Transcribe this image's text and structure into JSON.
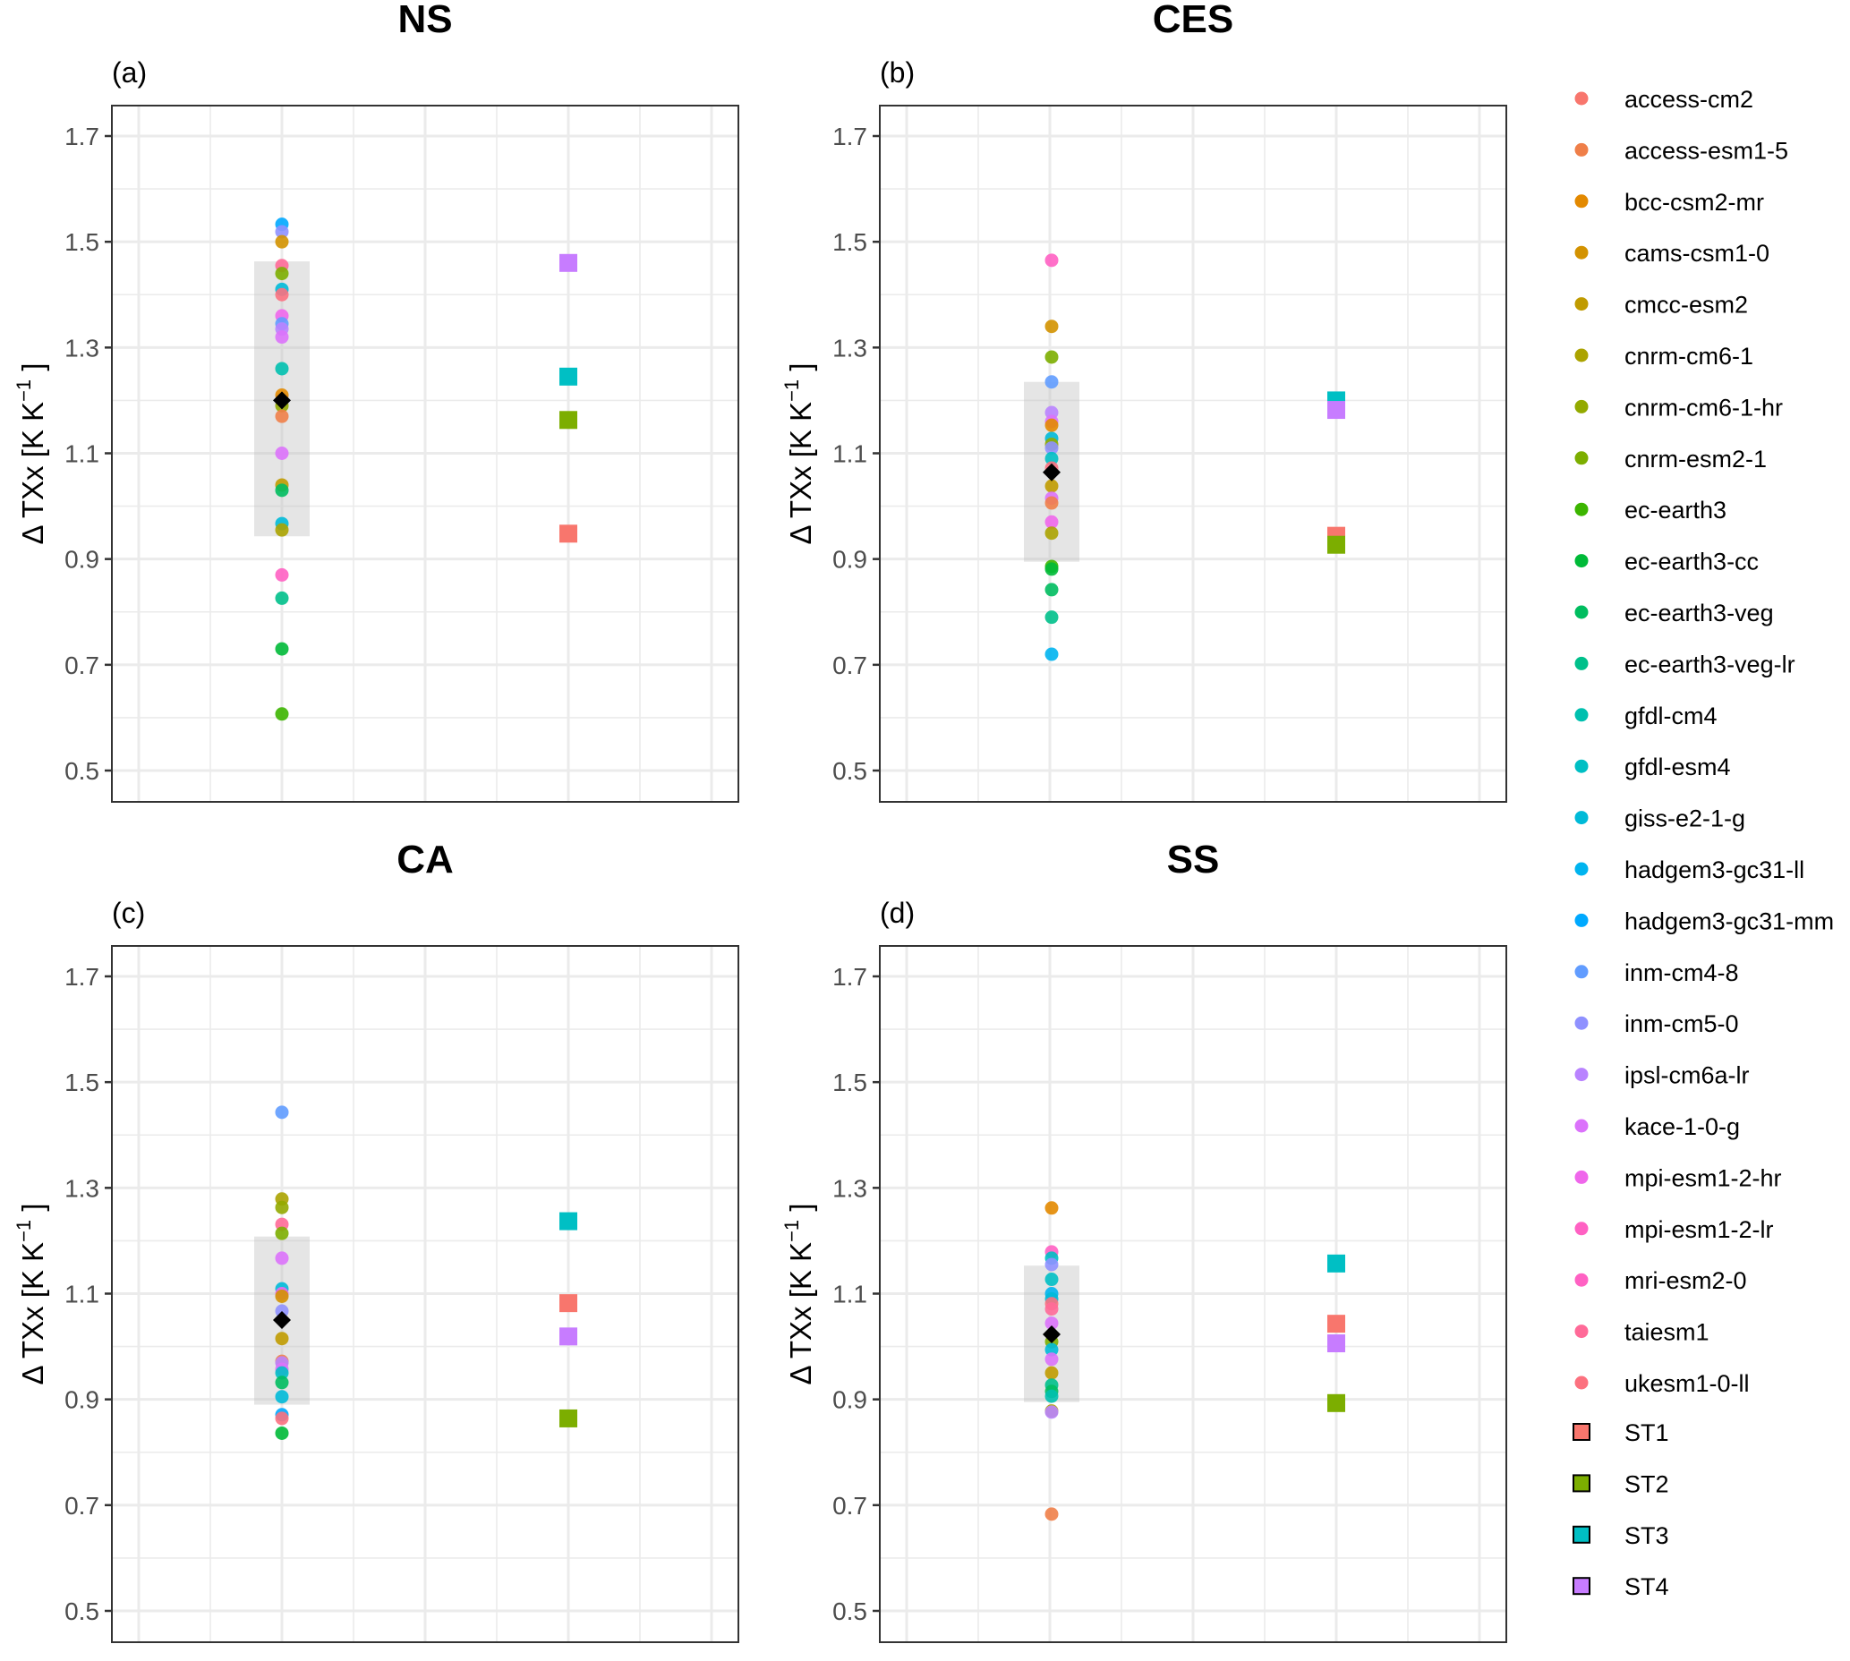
{
  "chart_data": {
    "type": "scatter",
    "ylabel": "Δ TXx [K K⁻¹]",
    "ylabel_parts": {
      "main": "Δ TXx [K K",
      "sup": "−1",
      "close": " ]"
    },
    "yticks": [
      "0.5",
      "0.7",
      "0.9",
      "1.1",
      "1.3",
      "1.5",
      "1.7"
    ],
    "ytick_values": [
      0.5,
      0.7,
      0.9,
      1.1,
      1.3,
      1.5,
      1.7
    ],
    "ylim": [
      0.44,
      1.76
    ],
    "grid": true,
    "legend_position": "right",
    "models": [
      {
        "name": "access-cm2",
        "color": "#F8766D"
      },
      {
        "name": "access-esm1-5",
        "color": "#EF7F49"
      },
      {
        "name": "bcc-csm2-mr",
        "color": "#E38900"
      },
      {
        "name": "cams-csm1-0",
        "color": "#D39200"
      },
      {
        "name": "cmcc-esm2",
        "color": "#C09B00"
      },
      {
        "name": "cnrm-cm6-1",
        "color": "#ABA300"
      },
      {
        "name": "cnrm-cm6-1-hr",
        "color": "#93AA00"
      },
      {
        "name": "cnrm-esm2-1",
        "color": "#7CAE00"
      },
      {
        "name": "ec-earth3",
        "color": "#3CB500"
      },
      {
        "name": "ec-earth3-cc",
        "color": "#00BA38"
      },
      {
        "name": "ec-earth3-veg",
        "color": "#00BD5F"
      },
      {
        "name": "ec-earth3-veg-lr",
        "color": "#00C08B"
      },
      {
        "name": "gfdl-cm4",
        "color": "#00C0AF"
      },
      {
        "name": "gfdl-esm4",
        "color": "#00BFC4"
      },
      {
        "name": "giss-e2-1-g",
        "color": "#00BAD8"
      },
      {
        "name": "hadgem3-gc31-ll",
        "color": "#00B4EF"
      },
      {
        "name": "hadgem3-gc31-mm",
        "color": "#00A9FF"
      },
      {
        "name": "inm-cm4-8",
        "color": "#619CFF"
      },
      {
        "name": "inm-cm5-0",
        "color": "#8F91FF"
      },
      {
        "name": "ipsl-cm6a-lr",
        "color": "#B983FF"
      },
      {
        "name": "kace-1-0-g",
        "color": "#DB72FB"
      },
      {
        "name": "mpi-esm1-2-hr",
        "color": "#EF67EB"
      },
      {
        "name": "mpi-esm1-2-lr",
        "color": "#FF61C3"
      },
      {
        "name": "mri-esm2-0",
        "color": "#FF61C3"
      },
      {
        "name": "taiesm1",
        "color": "#FF6A98"
      },
      {
        "name": "ukesm1-0-ll",
        "color": "#FC717F"
      }
    ],
    "storylines": [
      {
        "name": "ST1",
        "color": "#F8766D"
      },
      {
        "name": "ST2",
        "color": "#7CAE00"
      },
      {
        "name": "ST3",
        "color": "#00BFC4"
      },
      {
        "name": "ST4",
        "color": "#C77CFF"
      }
    ],
    "panels": [
      {
        "title": "NS",
        "tag": "(a)",
        "shade_range": [
          0.943,
          1.463
        ],
        "ensemble_mean": 1.2,
        "points": [
          {
            "model": "hadgem3-gc31-mm",
            "value": 1.533
          },
          {
            "model": "inm-cm5-0",
            "value": 1.519
          },
          {
            "model": "cams-csm1-0",
            "value": 1.5
          },
          {
            "model": "taiesm1",
            "value": 1.455
          },
          {
            "model": "cnrm-esm2-1",
            "value": 1.44
          },
          {
            "model": "giss-e2-1-g",
            "value": 1.41
          },
          {
            "model": "ukesm1-0-ll",
            "value": 1.4
          },
          {
            "model": "mpi-esm1-2-hr",
            "value": 1.36
          },
          {
            "model": "inm-cm4-8",
            "value": 1.345
          },
          {
            "model": "ipsl-cm6a-lr",
            "value": 1.335
          },
          {
            "model": "kace-1-0-g",
            "value": 1.32
          },
          {
            "model": "gfdl-cm4",
            "value": 1.26
          },
          {
            "model": "bcc-csm2-mr",
            "value": 1.21
          },
          {
            "model": "cnrm-cm6-1-hr",
            "value": 1.19
          },
          {
            "model": "access-esm1-5",
            "value": 1.17
          },
          {
            "model": "kace-1-0-g",
            "value": 1.1
          },
          {
            "model": "cmcc-esm2",
            "value": 1.04
          },
          {
            "model": "ec-earth3-veg",
            "value": 1.03
          },
          {
            "model": "giss-e2-1-g",
            "value": 0.967
          },
          {
            "model": "cnrm-cm6-1",
            "value": 0.955
          },
          {
            "model": "mpi-esm1-2-lr",
            "value": 0.87
          },
          {
            "model": "ec-earth3-veg-lr",
            "value": 0.826
          },
          {
            "model": "ec-earth3-cc",
            "value": 0.73
          },
          {
            "model": "ec-earth3",
            "value": 0.607
          }
        ],
        "storyline_values": {
          "ST1": 0.948,
          "ST2": 1.163,
          "ST3": 1.245,
          "ST4": 1.46
        }
      },
      {
        "title": "CES",
        "tag": "(b)",
        "shade_range": [
          0.895,
          1.235
        ],
        "ensemble_mean": 1.064,
        "points": [
          {
            "model": "mri-esm2-0",
            "value": 1.465
          },
          {
            "model": "cams-csm1-0",
            "value": 1.34
          },
          {
            "model": "cnrm-esm2-1",
            "value": 1.282
          },
          {
            "model": "inm-cm4-8",
            "value": 1.235
          },
          {
            "model": "ipsl-cm6a-lr",
            "value": 1.177
          },
          {
            "model": "kace-1-0-g",
            "value": 1.16
          },
          {
            "model": "bcc-csm2-mr",
            "value": 1.153
          },
          {
            "model": "giss-e2-1-g",
            "value": 1.128
          },
          {
            "model": "cnrm-cm6-1-hr",
            "value": 1.117
          },
          {
            "model": "inm-cm5-0",
            "value": 1.11
          },
          {
            "model": "gfdl-esm4",
            "value": 1.09
          },
          {
            "model": "ukesm1-0-ll",
            "value": 1.072
          },
          {
            "model": "cmcc-esm2",
            "value": 1.038
          },
          {
            "model": "kace-1-0-g",
            "value": 1.015
          },
          {
            "model": "access-esm1-5",
            "value": 1.006
          },
          {
            "model": "mpi-esm1-2-hr",
            "value": 0.97
          },
          {
            "model": "cnrm-cm6-1",
            "value": 0.949
          },
          {
            "model": "ec-earth3",
            "value": 0.886
          },
          {
            "model": "ec-earth3-cc",
            "value": 0.881
          },
          {
            "model": "ec-earth3-veg",
            "value": 0.842
          },
          {
            "model": "ec-earth3-veg-lr",
            "value": 0.79
          },
          {
            "model": "hadgem3-gc31-ll",
            "value": 0.72
          }
        ],
        "storyline_values": {
          "ST1": 0.944,
          "ST2": 0.927,
          "ST3": 1.2,
          "ST4": 1.182
        }
      },
      {
        "title": "CA",
        "tag": "(c)",
        "shade_range": [
          0.89,
          1.208
        ],
        "ensemble_mean": 1.05,
        "points": [
          {
            "model": "inm-cm4-8",
            "value": 1.443
          },
          {
            "model": "cnrm-cm6-1",
            "value": 1.279
          },
          {
            "model": "cnrm-cm6-1-hr",
            "value": 1.263
          },
          {
            "model": "taiesm1",
            "value": 1.231
          },
          {
            "model": "cnrm-esm2-1",
            "value": 1.214
          },
          {
            "model": "kace-1-0-g",
            "value": 1.167
          },
          {
            "model": "giss-e2-1-g",
            "value": 1.109
          },
          {
            "model": "mpi-esm1-2-hr",
            "value": 1.1
          },
          {
            "model": "cams-csm1-0",
            "value": 1.095
          },
          {
            "model": "inm-cm5-0",
            "value": 1.067
          },
          {
            "model": "cmcc-esm2",
            "value": 1.015
          },
          {
            "model": "access-esm1-5",
            "value": 0.972
          },
          {
            "model": "ipsl-cm6a-lr",
            "value": 0.969
          },
          {
            "model": "kace-1-0-g",
            "value": 0.957
          },
          {
            "model": "gfdl-esm4",
            "value": 0.95
          },
          {
            "model": "ec-earth3-veg",
            "value": 0.932
          },
          {
            "model": "giss-e2-1-g",
            "value": 0.905
          },
          {
            "model": "hadgem3-gc31-mm",
            "value": 0.871
          },
          {
            "model": "ukesm1-0-ll",
            "value": 0.864
          },
          {
            "model": "ec-earth3-cc",
            "value": 0.836
          }
        ],
        "storyline_values": {
          "ST1": 1.082,
          "ST2": 0.864,
          "ST3": 1.237,
          "ST4": 1.019
        }
      },
      {
        "title": "SS",
        "tag": "(d)",
        "shade_range": [
          0.895,
          1.153
        ],
        "ensemble_mean": 1.023,
        "points": [
          {
            "model": "bcc-csm2-mr",
            "value": 1.262
          },
          {
            "model": "mpi-esm1-2-lr",
            "value": 1.179
          },
          {
            "model": "gfdl-esm4",
            "value": 1.167
          },
          {
            "model": "inm-cm5-0",
            "value": 1.155
          },
          {
            "model": "gfdl-esm4",
            "value": 1.127
          },
          {
            "model": "hadgem3-gc31-ll",
            "value": 1.1
          },
          {
            "model": "giss-e2-1-g",
            "value": 1.09
          },
          {
            "model": "ukesm1-0-ll",
            "value": 1.081
          },
          {
            "model": "taiesm1",
            "value": 1.071
          },
          {
            "model": "kace-1-0-g",
            "value": 1.044
          },
          {
            "model": "cnrm-esm2-1",
            "value": 1.009
          },
          {
            "model": "giss-e2-1-g",
            "value": 0.994
          },
          {
            "model": "kace-1-0-g",
            "value": 0.976
          },
          {
            "model": "cmcc-esm2",
            "value": 0.95
          },
          {
            "model": "ec-earth3-veg-lr",
            "value": 0.927
          },
          {
            "model": "ec-earth3-veg",
            "value": 0.915
          },
          {
            "model": "gfdl-cm4",
            "value": 0.906
          },
          {
            "model": "cnrm-cm6-1",
            "value": 0.878
          },
          {
            "model": "ipsl-cm6a-lr",
            "value": 0.876
          },
          {
            "model": "access-esm1-5",
            "value": 0.683
          }
        ],
        "storyline_values": {
          "ST1": 1.043,
          "ST2": 0.893,
          "ST3": 1.157,
          "ST4": 1.006
        }
      }
    ]
  }
}
